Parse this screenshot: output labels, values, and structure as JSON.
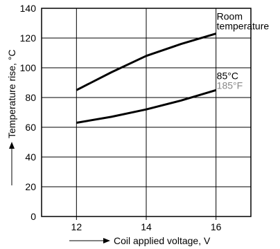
{
  "chart_data": {
    "type": "line",
    "title": "",
    "xlabel": "Coil applied voltage, V",
    "ylabel": "Temperature rise, °C",
    "xlim": [
      11,
      17
    ],
    "ylim": [
      0,
      140
    ],
    "xticks": [
      12,
      14,
      16
    ],
    "yticks": [
      0,
      20,
      40,
      60,
      80,
      100,
      120,
      140
    ],
    "grid": true,
    "series": [
      {
        "label_lines": [
          "Room",
          "temperature"
        ],
        "x": [
          12,
          13,
          14,
          14.5,
          15,
          16
        ],
        "y": [
          85,
          97,
          108,
          112,
          116,
          123
        ],
        "color": "#000000"
      },
      {
        "label_lines": [
          "85°C",
          "185°F"
        ],
        "label_colors": [
          "#000000",
          "#888888"
        ],
        "x": [
          12,
          13,
          14,
          15,
          16
        ],
        "y": [
          63,
          67,
          72,
          78,
          85
        ],
        "color": "#000000"
      }
    ]
  }
}
